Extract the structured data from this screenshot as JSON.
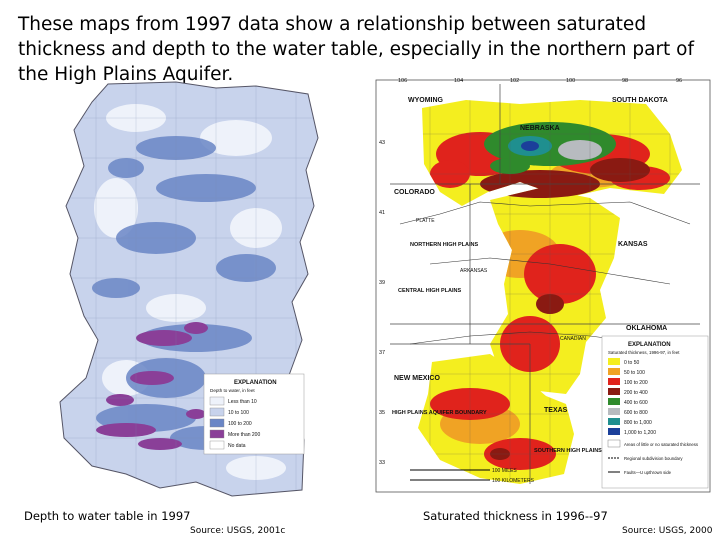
{
  "title": "These maps from 1997 data show a relationship between saturated thickness and depth to the water table, especially in the northern part of the High Plains Aquifer.",
  "left_map": {
    "caption": "Depth to water table in 1997",
    "source": "Source: USGS, 2001c",
    "legend": {
      "title": "EXPLANATION",
      "subtitle": "Depth to water, in feet",
      "items": [
        {
          "label": "Less than 10",
          "color": "#eef2fa"
        },
        {
          "label": "10 to 100",
          "color": "#c8d3ec"
        },
        {
          "label": "100 to 200",
          "color": "#6a86c6"
        },
        {
          "label": "More than 200",
          "color": "#8a3f98"
        },
        {
          "label": "No data",
          "color": "#ffffff"
        }
      ]
    },
    "colors": {
      "base": "#c8d3ec",
      "mid": "#6a86c6",
      "deep": "#8a3f98",
      "light": "#eef2fa"
    }
  },
  "right_map": {
    "caption": "Saturated thickness in 1996--97",
    "source": "Source: USGS, 2000",
    "top_ticks": [
      "106",
      "104",
      "102",
      "100",
      "98",
      "96"
    ],
    "side_ticks": [
      "43",
      "41",
      "39",
      "37",
      "35",
      "33"
    ],
    "state_labels": {
      "wyoming": "WYOMING",
      "south_dakota": "SOUTH DAKOTA",
      "nebraska": "NEBRASKA",
      "colorado": "COLORADO",
      "kansas": "KANSAS",
      "oklahoma": "OKLAHOMA",
      "new_mexico": "NEW MEXICO",
      "texas": "TEXAS"
    },
    "region_labels": {
      "northern": "NORTHERN HIGH PLAINS",
      "central": "CENTRAL HIGH PLAINS",
      "southern": "SOUTHERN HIGH PLAINS",
      "boundary": "HIGH PLAINS AQUIFER BOUNDARY"
    },
    "rivers": [
      "PLATTE",
      "ARKANSAS",
      "CANADIAN"
    ],
    "legend": {
      "title": "EXPLANATION",
      "subtitle": "Saturated thickness, 1996-97, in feet",
      "items": [
        {
          "label": "0 to 50",
          "color": "#f4ee1f"
        },
        {
          "label": "50 to 100",
          "color": "#f0a324"
        },
        {
          "label": "100 to 200",
          "color": "#e0231c"
        },
        {
          "label": "200 to 400",
          "color": "#8a1a12"
        },
        {
          "label": "400 to 600",
          "color": "#2f8a2c"
        },
        {
          "label": "600 to 800",
          "color": "#b7bbbf"
        },
        {
          "label": "800 to 1,000",
          "color": "#1f8f8f"
        },
        {
          "label": "1,000 to 1,200",
          "color": "#1b3f9a"
        }
      ],
      "notes": [
        "Areas of little or no saturated thickness",
        "Regional subdivision boundary",
        "Faults—U upthrown side"
      ]
    },
    "scale": {
      "miles": "100 MILES",
      "km": "100 KILOMETERS"
    }
  }
}
